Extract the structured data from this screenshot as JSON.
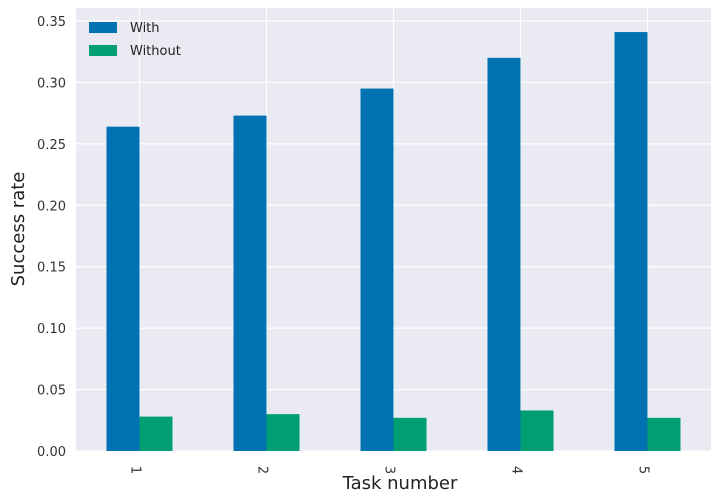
{
  "chart_data": {
    "type": "bar",
    "categories": [
      "1",
      "2",
      "3",
      "4",
      "5"
    ],
    "series": [
      {
        "name": "With",
        "values": [
          0.264,
          0.273,
          0.295,
          0.32,
          0.341
        ]
      },
      {
        "name": "Without",
        "values": [
          0.028,
          0.03,
          0.027,
          0.033,
          0.027
        ]
      }
    ],
    "xlabel": "Task number",
    "ylabel": "Success rate",
    "ylim": [
      0,
      0.35
    ],
    "yticks": [
      "0.00",
      "0.05",
      "0.10",
      "0.15",
      "0.20",
      "0.25",
      "0.30",
      "0.35"
    ],
    "grid": true,
    "legend_position": "top-left"
  },
  "colors": {
    "with": "#0072b2",
    "without": "#009e73",
    "background": "#eaeaf2",
    "grid": "#ffffff"
  }
}
